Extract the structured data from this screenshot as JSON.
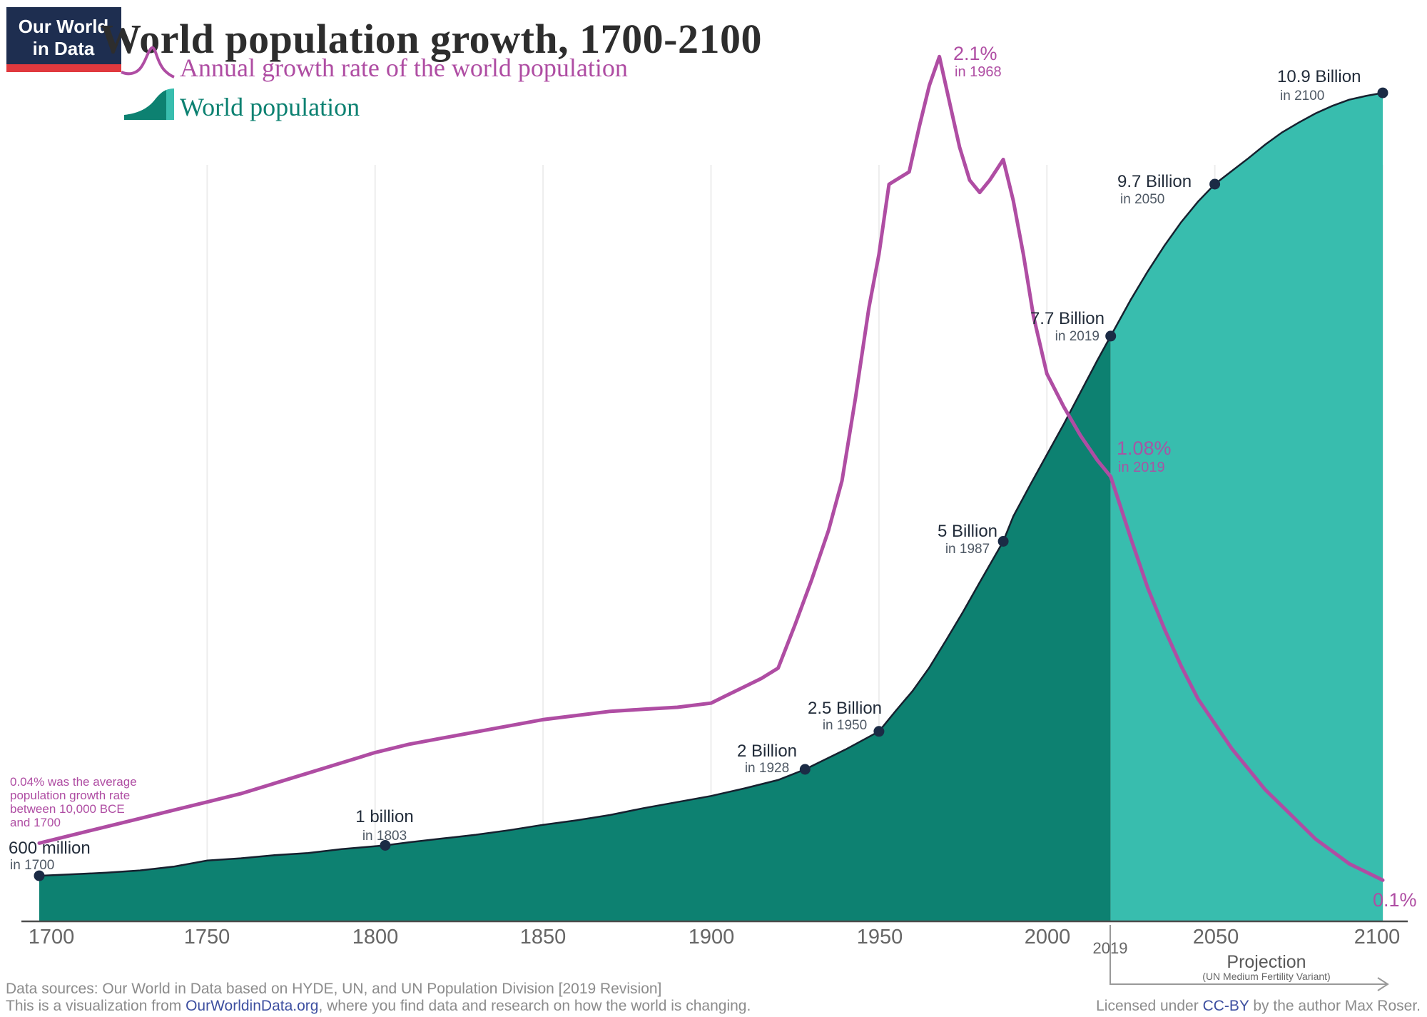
{
  "logo": {
    "line1": "Our World",
    "line2": "in Data"
  },
  "header": {
    "title": "World population growth, 1700-2100"
  },
  "legend": {
    "growth_label": "Annual growth rate of the world population",
    "population_label": "World population"
  },
  "colors": {
    "accent_purple": "#af4da3",
    "teal_dark": "#0d8171",
    "teal_light": "#38bdae",
    "dot_navy": "#1b2b45",
    "edge_dark": "#16212f",
    "gridline": "#ededed",
    "axis": "#4d4d4d",
    "logo_navy": "#1e2e50",
    "logo_red": "#e0393e",
    "link_blue": "#3d4fa0"
  },
  "annotations": {
    "peak": {
      "value": "2.1%",
      "year": "in 1968"
    },
    "rate_2019": {
      "value": "1.08%",
      "year": "in 2019"
    },
    "rate_2100": {
      "value": "0.1%"
    },
    "historic_note": {
      "lines": [
        "0.04% was the average",
        "population growth rate",
        "between 10,000 BCE",
        "and 1700"
      ]
    }
  },
  "milestones": [
    {
      "value": "600 million",
      "year": "in 1700"
    },
    {
      "value": "1 billion",
      "year": "in 1803"
    },
    {
      "value": "2 Billion",
      "year": "in 1928"
    },
    {
      "value": "2.5 Billion",
      "year": "in 1950"
    },
    {
      "value": "5 Billion",
      "year": "in 1987"
    },
    {
      "value": "7.7 Billion",
      "year": "in 2019"
    },
    {
      "value": "9.7 Billion",
      "year": "in 2050"
    },
    {
      "value": "10.9 Billion",
      "year": "in 2100"
    }
  ],
  "axis": {
    "ticks": [
      "1700",
      "1750",
      "1800",
      "1850",
      "1900",
      "1950",
      "2000",
      "2050",
      "2100"
    ],
    "extra_tick": "2019",
    "projection_label": "Projection",
    "projection_sub": "(UN Medium Fertility Variant)"
  },
  "footer": {
    "sources_line": "Data sources: Our World in Data based on HYDE, UN, and UN Population Division [2019 Revision]",
    "viz_prefix": "This is a visualization from ",
    "viz_link": "OurWorldinData.org",
    "viz_suffix": ", where you find data and research on how the world is changing.",
    "license_prefix": "Licensed under ",
    "license_link": "CC-BY",
    "license_suffix": " by the author Max Roser."
  },
  "chart_data": {
    "type": "area",
    "title": "World population growth, 1700-2100",
    "x_range": [
      1700,
      2100
    ],
    "projection_start": 2019,
    "grid": "vertical-only",
    "legend_position": "top-left",
    "series": [
      {
        "name": "World population",
        "type": "area",
        "unit": "billion",
        "points": [
          [
            1700,
            0.6
          ],
          [
            1710,
            0.62
          ],
          [
            1720,
            0.64
          ],
          [
            1730,
            0.67
          ],
          [
            1740,
            0.72
          ],
          [
            1750,
            0.8
          ],
          [
            1760,
            0.83
          ],
          [
            1770,
            0.87
          ],
          [
            1780,
            0.9
          ],
          [
            1790,
            0.95
          ],
          [
            1803,
            1.0
          ],
          [
            1810,
            1.04
          ],
          [
            1820,
            1.09
          ],
          [
            1830,
            1.14
          ],
          [
            1840,
            1.2
          ],
          [
            1850,
            1.27
          ],
          [
            1860,
            1.33
          ],
          [
            1870,
            1.4
          ],
          [
            1880,
            1.49
          ],
          [
            1890,
            1.57
          ],
          [
            1900,
            1.65
          ],
          [
            1910,
            1.75
          ],
          [
            1920,
            1.86
          ],
          [
            1928,
            2.0
          ],
          [
            1940,
            2.26
          ],
          [
            1950,
            2.5
          ],
          [
            1955,
            2.77
          ],
          [
            1960,
            3.03
          ],
          [
            1965,
            3.34
          ],
          [
            1970,
            3.7
          ],
          [
            1975,
            4.07
          ],
          [
            1980,
            4.46
          ],
          [
            1987,
            5.0
          ],
          [
            1990,
            5.33
          ],
          [
            1995,
            5.74
          ],
          [
            2000,
            6.14
          ],
          [
            2005,
            6.54
          ],
          [
            2010,
            6.96
          ],
          [
            2015,
            7.38
          ],
          [
            2019,
            7.7
          ],
          [
            2025,
            8.18
          ],
          [
            2030,
            8.55
          ],
          [
            2035,
            8.89
          ],
          [
            2040,
            9.2
          ],
          [
            2045,
            9.47
          ],
          [
            2050,
            9.7
          ],
          [
            2055,
            9.87
          ],
          [
            2060,
            10.04
          ],
          [
            2065,
            10.22
          ],
          [
            2070,
            10.38
          ],
          [
            2075,
            10.51
          ],
          [
            2080,
            10.63
          ],
          [
            2085,
            10.73
          ],
          [
            2090,
            10.81
          ],
          [
            2095,
            10.86
          ],
          [
            2100,
            10.9
          ]
        ]
      },
      {
        "name": "Annual growth rate of the world population",
        "type": "line",
        "unit": "percent",
        "points": [
          [
            1700,
            0.19
          ],
          [
            1710,
            0.21
          ],
          [
            1720,
            0.23
          ],
          [
            1730,
            0.25
          ],
          [
            1740,
            0.27
          ],
          [
            1750,
            0.29
          ],
          [
            1760,
            0.31
          ],
          [
            1770,
            0.335
          ],
          [
            1780,
            0.36
          ],
          [
            1790,
            0.385
          ],
          [
            1800,
            0.41
          ],
          [
            1810,
            0.43
          ],
          [
            1820,
            0.445
          ],
          [
            1830,
            0.46
          ],
          [
            1840,
            0.475
          ],
          [
            1850,
            0.49
          ],
          [
            1860,
            0.5
          ],
          [
            1870,
            0.51
          ],
          [
            1880,
            0.515
          ],
          [
            1890,
            0.52
          ],
          [
            1900,
            0.53
          ],
          [
            1905,
            0.55
          ],
          [
            1910,
            0.57
          ],
          [
            1915,
            0.59
          ],
          [
            1920,
            0.615
          ],
          [
            1925,
            0.72
          ],
          [
            1930,
            0.83
          ],
          [
            1935,
            0.95
          ],
          [
            1939,
            1.07
          ],
          [
            1943,
            1.27
          ],
          [
            1947,
            1.49
          ],
          [
            1950,
            1.62
          ],
          [
            1953,
            1.79
          ],
          [
            1956,
            1.805
          ],
          [
            1959,
            1.82
          ],
          [
            1962,
            1.93
          ],
          [
            1965,
            2.03
          ],
          [
            1968,
            2.1
          ],
          [
            1971,
            1.99
          ],
          [
            1974,
            1.88
          ],
          [
            1977,
            1.8
          ],
          [
            1980,
            1.77
          ],
          [
            1983,
            1.8
          ],
          [
            1987,
            1.85
          ],
          [
            1990,
            1.75
          ],
          [
            1993,
            1.62
          ],
          [
            1996,
            1.47
          ],
          [
            2000,
            1.33
          ],
          [
            2005,
            1.25
          ],
          [
            2010,
            1.18
          ],
          [
            2015,
            1.12
          ],
          [
            2019,
            1.08
          ],
          [
            2025,
            0.93
          ],
          [
            2030,
            0.81
          ],
          [
            2035,
            0.71
          ],
          [
            2040,
            0.62
          ],
          [
            2045,
            0.54
          ],
          [
            2050,
            0.48
          ],
          [
            2055,
            0.42
          ],
          [
            2060,
            0.37
          ],
          [
            2065,
            0.32
          ],
          [
            2070,
            0.28
          ],
          [
            2075,
            0.24
          ],
          [
            2080,
            0.2
          ],
          [
            2085,
            0.17
          ],
          [
            2090,
            0.14
          ],
          [
            2095,
            0.12
          ],
          [
            2100,
            0.1
          ]
        ]
      }
    ],
    "milestone_points": [
      [
        1700,
        0.6
      ],
      [
        1803,
        1.0
      ],
      [
        1928,
        2.0
      ],
      [
        1950,
        2.5
      ],
      [
        1987,
        5.0
      ],
      [
        2019,
        7.7
      ],
      [
        2050,
        9.7
      ],
      [
        2100,
        10.9
      ]
    ],
    "gridline_years": [
      1750,
      1800,
      1850,
      1900,
      1950,
      2000,
      2050,
      2100
    ],
    "x_tick_years": [
      1700,
      1750,
      1800,
      1850,
      1900,
      1950,
      2000,
      2050,
      2100
    ]
  }
}
